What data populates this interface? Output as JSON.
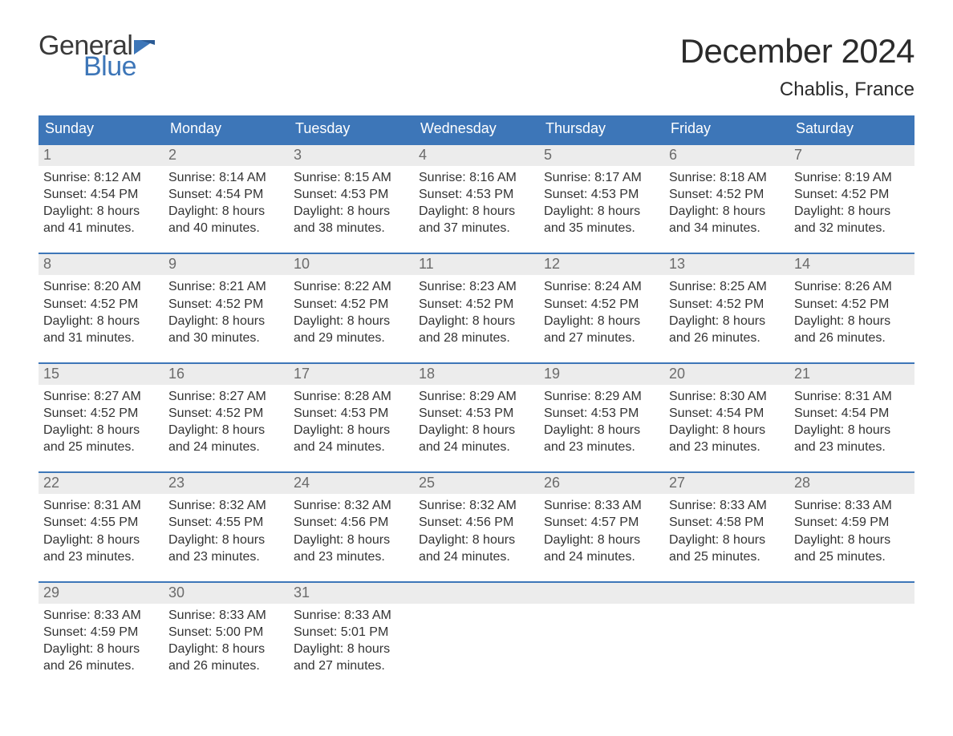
{
  "brand": {
    "word1": "General",
    "word2": "Blue",
    "accent_color": "#3d76b8",
    "text_color": "#3a3a3a"
  },
  "title": "December 2024",
  "location": "Chablis, France",
  "colors": {
    "header_bg": "#3d76b8",
    "header_text": "#ffffff",
    "daynum_bg": "#ececec",
    "daynum_text": "#6b6b6b",
    "body_text": "#333333",
    "rule": "#3d76b8",
    "page_bg": "#ffffff"
  },
  "days_of_week": [
    "Sunday",
    "Monday",
    "Tuesday",
    "Wednesday",
    "Thursday",
    "Friday",
    "Saturday"
  ],
  "weeks": [
    [
      {
        "n": "1",
        "sunrise": "Sunrise: 8:12 AM",
        "sunset": "Sunset: 4:54 PM",
        "d1": "Daylight: 8 hours",
        "d2": "and 41 minutes."
      },
      {
        "n": "2",
        "sunrise": "Sunrise: 8:14 AM",
        "sunset": "Sunset: 4:54 PM",
        "d1": "Daylight: 8 hours",
        "d2": "and 40 minutes."
      },
      {
        "n": "3",
        "sunrise": "Sunrise: 8:15 AM",
        "sunset": "Sunset: 4:53 PM",
        "d1": "Daylight: 8 hours",
        "d2": "and 38 minutes."
      },
      {
        "n": "4",
        "sunrise": "Sunrise: 8:16 AM",
        "sunset": "Sunset: 4:53 PM",
        "d1": "Daylight: 8 hours",
        "d2": "and 37 minutes."
      },
      {
        "n": "5",
        "sunrise": "Sunrise: 8:17 AM",
        "sunset": "Sunset: 4:53 PM",
        "d1": "Daylight: 8 hours",
        "d2": "and 35 minutes."
      },
      {
        "n": "6",
        "sunrise": "Sunrise: 8:18 AM",
        "sunset": "Sunset: 4:52 PM",
        "d1": "Daylight: 8 hours",
        "d2": "and 34 minutes."
      },
      {
        "n": "7",
        "sunrise": "Sunrise: 8:19 AM",
        "sunset": "Sunset: 4:52 PM",
        "d1": "Daylight: 8 hours",
        "d2": "and 32 minutes."
      }
    ],
    [
      {
        "n": "8",
        "sunrise": "Sunrise: 8:20 AM",
        "sunset": "Sunset: 4:52 PM",
        "d1": "Daylight: 8 hours",
        "d2": "and 31 minutes."
      },
      {
        "n": "9",
        "sunrise": "Sunrise: 8:21 AM",
        "sunset": "Sunset: 4:52 PM",
        "d1": "Daylight: 8 hours",
        "d2": "and 30 minutes."
      },
      {
        "n": "10",
        "sunrise": "Sunrise: 8:22 AM",
        "sunset": "Sunset: 4:52 PM",
        "d1": "Daylight: 8 hours",
        "d2": "and 29 minutes."
      },
      {
        "n": "11",
        "sunrise": "Sunrise: 8:23 AM",
        "sunset": "Sunset: 4:52 PM",
        "d1": "Daylight: 8 hours",
        "d2": "and 28 minutes."
      },
      {
        "n": "12",
        "sunrise": "Sunrise: 8:24 AM",
        "sunset": "Sunset: 4:52 PM",
        "d1": "Daylight: 8 hours",
        "d2": "and 27 minutes."
      },
      {
        "n": "13",
        "sunrise": "Sunrise: 8:25 AM",
        "sunset": "Sunset: 4:52 PM",
        "d1": "Daylight: 8 hours",
        "d2": "and 26 minutes."
      },
      {
        "n": "14",
        "sunrise": "Sunrise: 8:26 AM",
        "sunset": "Sunset: 4:52 PM",
        "d1": "Daylight: 8 hours",
        "d2": "and 26 minutes."
      }
    ],
    [
      {
        "n": "15",
        "sunrise": "Sunrise: 8:27 AM",
        "sunset": "Sunset: 4:52 PM",
        "d1": "Daylight: 8 hours",
        "d2": "and 25 minutes."
      },
      {
        "n": "16",
        "sunrise": "Sunrise: 8:27 AM",
        "sunset": "Sunset: 4:52 PM",
        "d1": "Daylight: 8 hours",
        "d2": "and 24 minutes."
      },
      {
        "n": "17",
        "sunrise": "Sunrise: 8:28 AM",
        "sunset": "Sunset: 4:53 PM",
        "d1": "Daylight: 8 hours",
        "d2": "and 24 minutes."
      },
      {
        "n": "18",
        "sunrise": "Sunrise: 8:29 AM",
        "sunset": "Sunset: 4:53 PM",
        "d1": "Daylight: 8 hours",
        "d2": "and 24 minutes."
      },
      {
        "n": "19",
        "sunrise": "Sunrise: 8:29 AM",
        "sunset": "Sunset: 4:53 PM",
        "d1": "Daylight: 8 hours",
        "d2": "and 23 minutes."
      },
      {
        "n": "20",
        "sunrise": "Sunrise: 8:30 AM",
        "sunset": "Sunset: 4:54 PM",
        "d1": "Daylight: 8 hours",
        "d2": "and 23 minutes."
      },
      {
        "n": "21",
        "sunrise": "Sunrise: 8:31 AM",
        "sunset": "Sunset: 4:54 PM",
        "d1": "Daylight: 8 hours",
        "d2": "and 23 minutes."
      }
    ],
    [
      {
        "n": "22",
        "sunrise": "Sunrise: 8:31 AM",
        "sunset": "Sunset: 4:55 PM",
        "d1": "Daylight: 8 hours",
        "d2": "and 23 minutes."
      },
      {
        "n": "23",
        "sunrise": "Sunrise: 8:32 AM",
        "sunset": "Sunset: 4:55 PM",
        "d1": "Daylight: 8 hours",
        "d2": "and 23 minutes."
      },
      {
        "n": "24",
        "sunrise": "Sunrise: 8:32 AM",
        "sunset": "Sunset: 4:56 PM",
        "d1": "Daylight: 8 hours",
        "d2": "and 23 minutes."
      },
      {
        "n": "25",
        "sunrise": "Sunrise: 8:32 AM",
        "sunset": "Sunset: 4:56 PM",
        "d1": "Daylight: 8 hours",
        "d2": "and 24 minutes."
      },
      {
        "n": "26",
        "sunrise": "Sunrise: 8:33 AM",
        "sunset": "Sunset: 4:57 PM",
        "d1": "Daylight: 8 hours",
        "d2": "and 24 minutes."
      },
      {
        "n": "27",
        "sunrise": "Sunrise: 8:33 AM",
        "sunset": "Sunset: 4:58 PM",
        "d1": "Daylight: 8 hours",
        "d2": "and 25 minutes."
      },
      {
        "n": "28",
        "sunrise": "Sunrise: 8:33 AM",
        "sunset": "Sunset: 4:59 PM",
        "d1": "Daylight: 8 hours",
        "d2": "and 25 minutes."
      }
    ],
    [
      {
        "n": "29",
        "sunrise": "Sunrise: 8:33 AM",
        "sunset": "Sunset: 4:59 PM",
        "d1": "Daylight: 8 hours",
        "d2": "and 26 minutes."
      },
      {
        "n": "30",
        "sunrise": "Sunrise: 8:33 AM",
        "sunset": "Sunset: 5:00 PM",
        "d1": "Daylight: 8 hours",
        "d2": "and 26 minutes."
      },
      {
        "n": "31",
        "sunrise": "Sunrise: 8:33 AM",
        "sunset": "Sunset: 5:01 PM",
        "d1": "Daylight: 8 hours",
        "d2": "and 27 minutes."
      },
      null,
      null,
      null,
      null
    ]
  ]
}
